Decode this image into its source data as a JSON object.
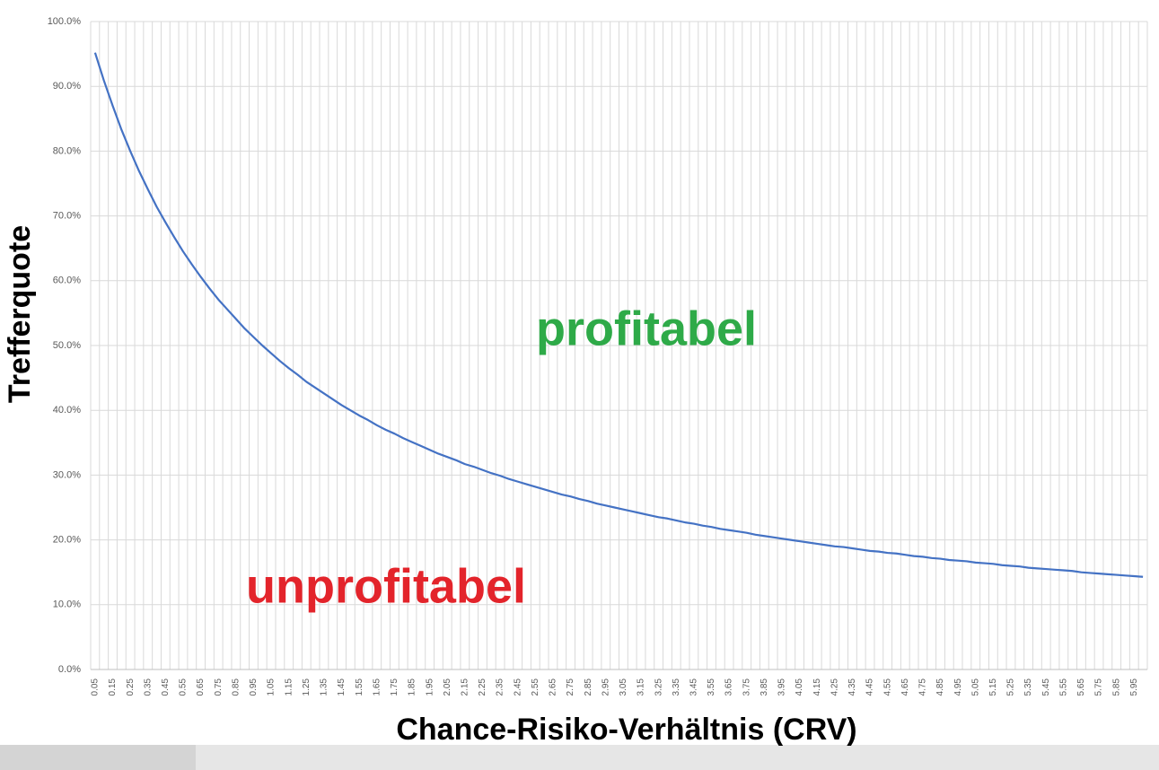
{
  "chart_data": {
    "type": "line",
    "y_label": "Trefferquote",
    "x_label": "Chance-Risiko-Verhältnis (CRV)",
    "annotations": [
      "profitabel",
      "unprofitabel"
    ],
    "color": "#4472c4",
    "grid": true,
    "categories": [
      "0.05",
      null,
      "0.15",
      null,
      "0.25",
      null,
      "0.35",
      null,
      "0.45",
      null,
      "0.55",
      null,
      "0.65",
      null,
      "0.75",
      null,
      "0.85",
      null,
      "0.95",
      null,
      "1.05",
      null,
      "1.15",
      null,
      "1.25",
      null,
      "1.35",
      null,
      "1.45",
      null,
      "1.55",
      null,
      "1.65",
      null,
      "1.75",
      null,
      "1.85",
      null,
      "1.95",
      null,
      "2.05",
      null,
      "2.15",
      null,
      "2.25",
      null,
      "2.35",
      null,
      "2.45",
      null,
      "2.55",
      null,
      "2.65",
      null,
      "2.75",
      null,
      "2.85",
      null,
      "2.95",
      null,
      "3.05",
      null,
      "3.15",
      null,
      "3.25",
      null,
      "3.35",
      null,
      "3.45",
      null,
      "3.55",
      null,
      "3.65",
      null,
      "3.75",
      null,
      "3.85",
      null,
      "3.95",
      null,
      "4.05",
      null,
      "4.15",
      null,
      "4.25",
      null,
      "4.35",
      null,
      "4.45",
      null,
      "4.55",
      null,
      "4.65",
      null,
      "4.75",
      null,
      "4.85",
      null,
      "4.95",
      null,
      "5.05",
      null,
      "5.15",
      null,
      "5.25",
      null,
      "5.35",
      null,
      "5.45",
      null,
      "5.55",
      null,
      "5.65",
      null,
      "5.75",
      null,
      "5.85",
      null,
      "5.95",
      null
    ],
    "values": [
      95.2,
      90.9,
      87.0,
      83.3,
      80.0,
      76.9,
      74.1,
      71.4,
      69.0,
      66.7,
      64.5,
      62.5,
      60.6,
      58.8,
      57.1,
      55.6,
      54.1,
      52.6,
      51.3,
      50.0,
      48.8,
      47.6,
      46.5,
      45.5,
      44.4,
      43.5,
      42.6,
      41.7,
      40.8,
      40.0,
      39.2,
      38.5,
      37.7,
      37.0,
      36.4,
      35.7,
      35.1,
      34.5,
      33.9,
      33.3,
      32.8,
      32.3,
      31.7,
      31.3,
      30.8,
      30.3,
      29.9,
      29.4,
      29.0,
      28.6,
      28.2,
      27.8,
      27.4,
      27.0,
      26.7,
      26.3,
      26.0,
      25.6,
      25.3,
      25.0,
      24.7,
      24.4,
      24.1,
      23.8,
      23.5,
      23.3,
      23.0,
      22.7,
      22.5,
      22.2,
      22.0,
      21.7,
      21.5,
      21.3,
      21.1,
      20.8,
      20.6,
      20.4,
      20.2,
      20.0,
      19.8,
      19.6,
      19.4,
      19.2,
      19.0,
      18.9,
      18.7,
      18.5,
      18.3,
      18.2,
      18.0,
      17.9,
      17.7,
      17.5,
      17.4,
      17.2,
      17.1,
      16.9,
      16.8,
      16.7,
      16.5,
      16.4,
      16.3,
      16.1,
      16.0,
      15.9,
      15.7,
      15.6,
      15.5,
      15.4,
      15.3,
      15.2,
      15.0,
      14.9,
      14.8,
      14.7,
      14.6,
      14.5,
      14.4,
      14.3
    ],
    "ylim": [
      0,
      100
    ],
    "yticks": [
      {
        "value": 0,
        "label": "0.0%"
      },
      {
        "value": 10,
        "label": "10.0%"
      },
      {
        "value": 20,
        "label": "20.0%"
      },
      {
        "value": 30,
        "label": "30.0%"
      },
      {
        "value": 40,
        "label": "40.0%"
      },
      {
        "value": 50,
        "label": "50.0%"
      },
      {
        "value": 60,
        "label": "60.0%"
      },
      {
        "value": 70,
        "label": "70.0%"
      },
      {
        "value": 80,
        "label": "80.0%"
      },
      {
        "value": 90,
        "label": "90.0%"
      },
      {
        "value": 100,
        "label": "100.0%"
      }
    ]
  }
}
